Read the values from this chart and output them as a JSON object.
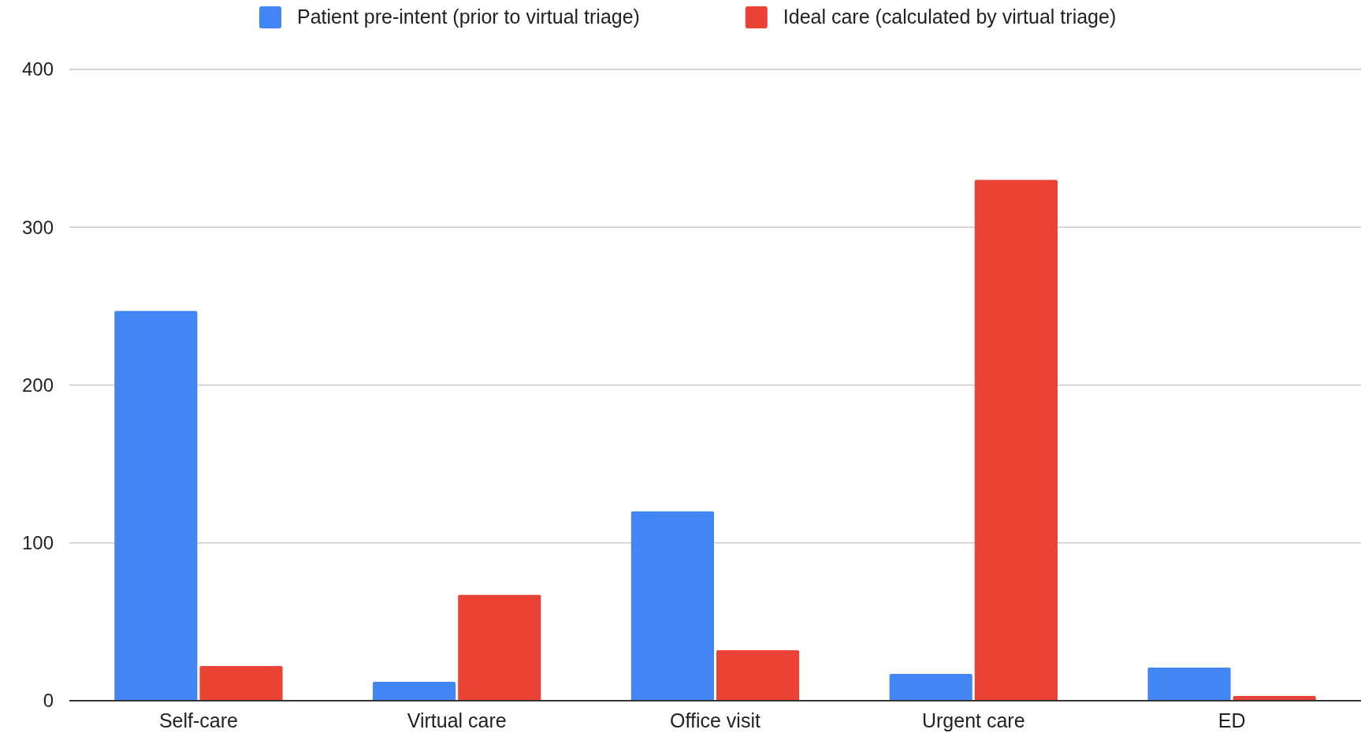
{
  "chart_data": {
    "type": "bar",
    "categories": [
      "Self-care",
      "Virtual care",
      "Office visit",
      "Urgent care",
      "ED"
    ],
    "series": [
      {
        "name": "Patient pre-intent (prior to virtual triage)",
        "color": "#4285f4",
        "values": [
          247,
          12,
          120,
          17,
          21
        ]
      },
      {
        "name": "Ideal care (calculated by virtual triage)",
        "color": "#ea4335",
        "values": [
          22,
          67,
          32,
          330,
          3
        ]
      }
    ],
    "ylim": [
      0,
      400
    ],
    "yticks": [
      0,
      100,
      200,
      300,
      400
    ],
    "grid": "y",
    "legend": "top"
  }
}
